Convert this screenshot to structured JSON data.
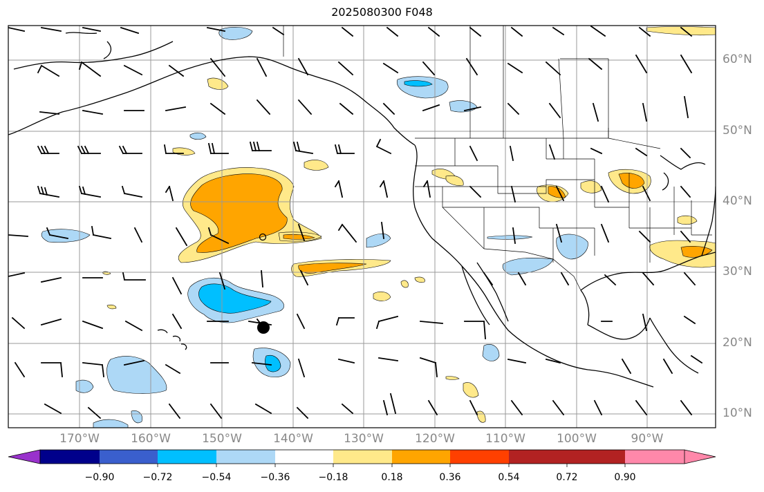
{
  "title": "2025080300 F048",
  "lat_labels": [
    "60°N",
    "50°N",
    "40°N",
    "30°N",
    "20°N",
    "10°N"
  ],
  "lon_labels": [
    "170°W",
    "160°W",
    "150°W",
    "140°W",
    "130°W",
    "120°W",
    "110°W",
    "100°W",
    "90°W"
  ],
  "colorbar": {
    "tick_labels": [
      "−0.90",
      "−0.72",
      "−0.54",
      "−0.36",
      "−0.18",
      "0.18",
      "0.36",
      "0.54",
      "0.72",
      "0.90"
    ],
    "colors": [
      "#9932cc",
      "#00008b",
      "#3a5fcd",
      "#00bfff",
      "#add8f6",
      "#ffffff",
      "#ffe98a",
      "#ffa500",
      "#ff4000",
      "#b22222",
      "#ff88aa"
    ]
  },
  "colors": {
    "light_blue": "#add8f6",
    "blue": "#00bfff",
    "light_yellow": "#ffe98a",
    "orange": "#ffa500",
    "grid": "#999999",
    "coast": "#000000"
  }
}
